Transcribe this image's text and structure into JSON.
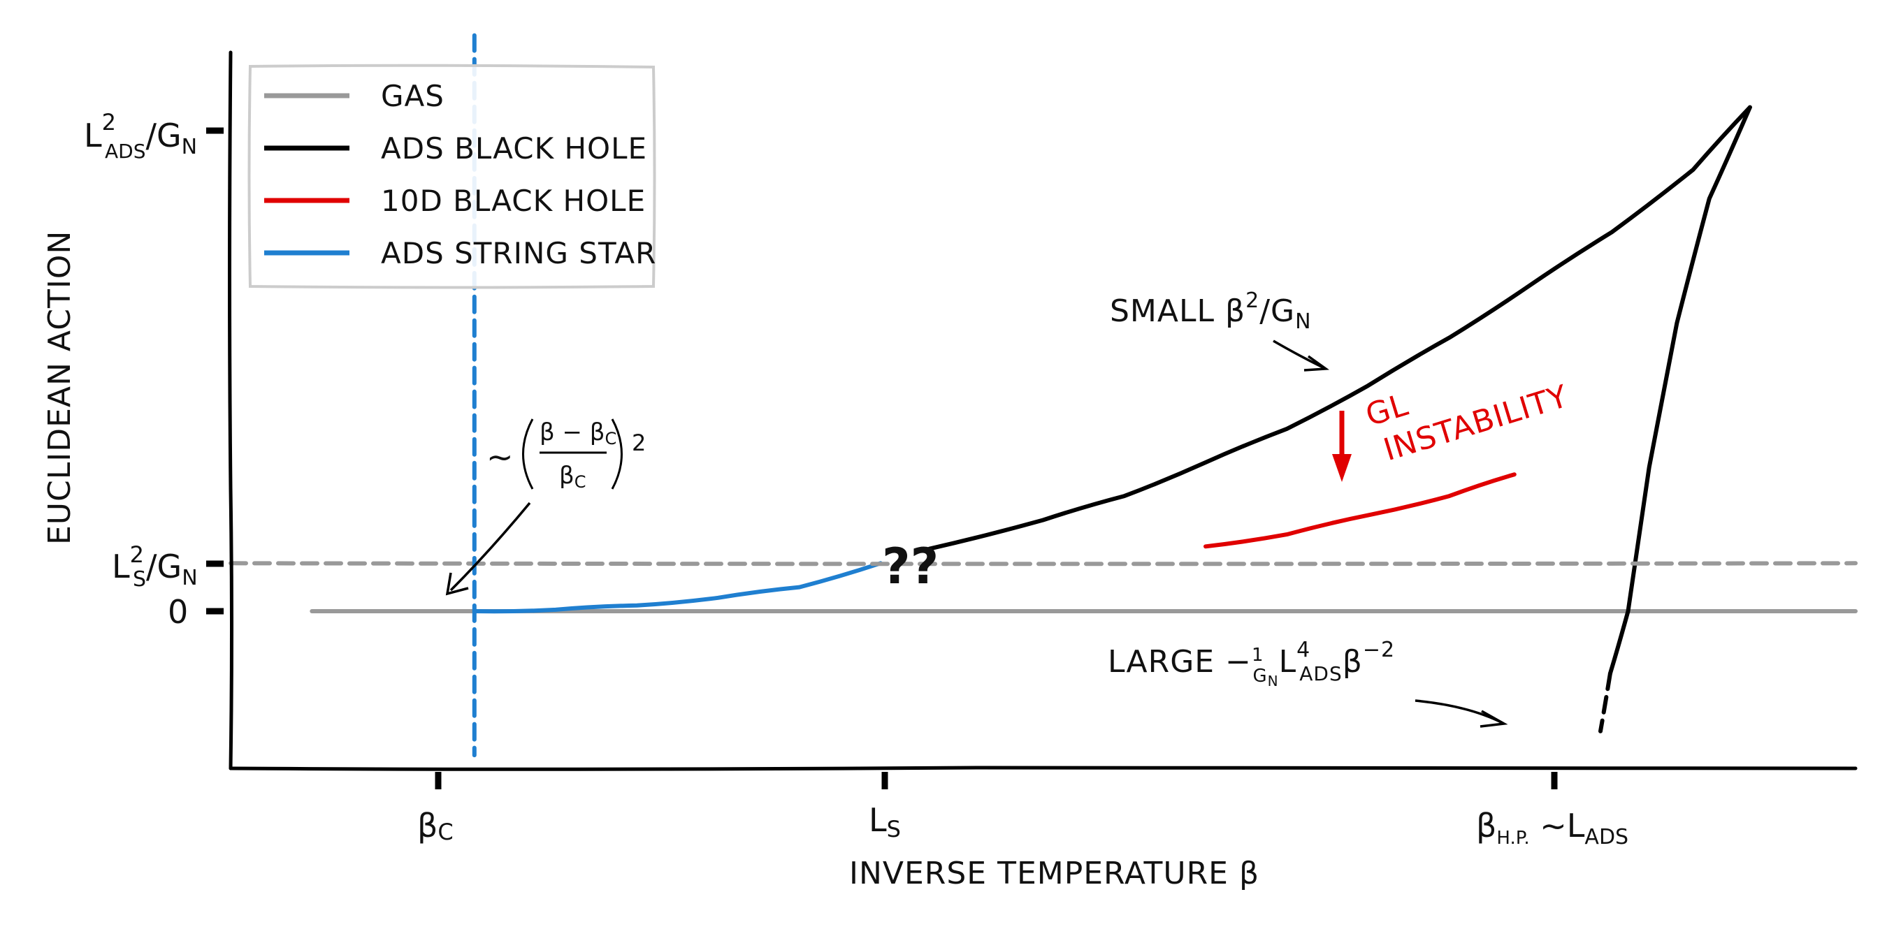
{
  "chart_data": {
    "type": "line",
    "title": "",
    "xlabel": "INVERSE TEMPERATURE β",
    "ylabel": "EUCLIDEAN ACTION",
    "xlim": [
      0,
      1
    ],
    "ylim": [
      -0.3,
      1.2
    ],
    "x_ticks": [
      {
        "value": 0.15,
        "label": "βC"
      },
      {
        "value": 0.4,
        "label": "LS"
      },
      {
        "value": 0.85,
        "label": "βH.P. ~LADS"
      }
    ],
    "y_ticks": [
      {
        "value": 0.0,
        "label": "0"
      },
      {
        "value": 0.1,
        "label": "LS²/GN"
      },
      {
        "value": 1.0,
        "label": "LADS²/GN"
      }
    ],
    "legend": {
      "placement": "top-left",
      "entries": [
        {
          "name": "GAS",
          "color": "#999999"
        },
        {
          "name": "ADS BLACK HOLE",
          "color": "#000000"
        },
        {
          "name": "10D BLACK HOLE",
          "color": "#e00000"
        },
        {
          "name": "ADS STRING STAR",
          "color": "#1f7fd0"
        }
      ]
    },
    "series": [
      {
        "name": "GAS",
        "color": "#999999",
        "style": "solid",
        "points": [
          [
            0.05,
            0.0
          ],
          [
            1.0,
            0.0
          ]
        ]
      },
      {
        "name": "ADS BLACK HOLE",
        "color": "#000000",
        "style": "solid",
        "points": [
          [
            0.43,
            0.13
          ],
          [
            0.5,
            0.19
          ],
          [
            0.55,
            0.24
          ],
          [
            0.6,
            0.31
          ],
          [
            0.65,
            0.38
          ],
          [
            0.7,
            0.47
          ],
          [
            0.75,
            0.57
          ],
          [
            0.8,
            0.68
          ],
          [
            0.85,
            0.79
          ],
          [
            0.9,
            0.92
          ],
          [
            0.935,
            1.05
          ]
        ]
      },
      {
        "name": "ADS BLACK HOLE",
        "color": "#000000",
        "style": "solid",
        "points": [
          [
            0.935,
            1.05
          ],
          [
            0.91,
            0.86
          ],
          [
            0.89,
            0.6
          ],
          [
            0.873,
            0.3
          ],
          [
            0.86,
            0.0
          ],
          [
            0.849,
            -0.13
          ]
        ]
      },
      {
        "name": "ADS BLACK HOLE",
        "color": "#000000",
        "style": "dashed",
        "points": [
          [
            0.849,
            -0.13
          ],
          [
            0.843,
            -0.25
          ]
        ]
      },
      {
        "name": "10D BLACK HOLE",
        "color": "#e00000",
        "style": "solid",
        "points": [
          [
            0.6,
            0.135
          ],
          [
            0.65,
            0.16
          ],
          [
            0.7,
            0.2
          ],
          [
            0.75,
            0.24
          ],
          [
            0.79,
            0.285
          ]
        ]
      },
      {
        "name": "ADS STRING STAR",
        "color": "#1f7fd0",
        "style": "solid",
        "points": [
          [
            0.15,
            0.0
          ],
          [
            0.2,
            0.003
          ],
          [
            0.25,
            0.012
          ],
          [
            0.3,
            0.028
          ],
          [
            0.35,
            0.05
          ],
          [
            0.4,
            0.1
          ]
        ]
      },
      {
        "name": "",
        "color": "#999999",
        "style": "dashed",
        "points": [
          [
            0.0,
            0.1
          ],
          [
            1.0,
            0.1
          ]
        ]
      },
      {
        "name": "",
        "color": "#1f7fd0",
        "style": "dashed",
        "points": [
          [
            0.15,
            1.2
          ],
          [
            0.15,
            -0.3
          ]
        ]
      }
    ],
    "annotations": [
      {
        "id": "qq",
        "text": "??",
        "x": 0.414,
        "y": 0.095
      },
      {
        "id": "small",
        "text": "SMALL β²/GN",
        "x": 0.55,
        "y": 0.62,
        "arrow_to": [
          0.61,
          0.5
        ]
      },
      {
        "id": "gl",
        "text": "GL INSTABILITY",
        "x": 0.73,
        "y": 0.42,
        "color": "#e00000"
      },
      {
        "id": "large",
        "text": "LARGE −(1/GN) L⁴ADS β⁻²",
        "x": 0.55,
        "y": -0.1,
        "arrow_to": [
          0.835,
          -0.235
        ]
      },
      {
        "id": "approx",
        "text": "~((β−βC)/βC)²",
        "x": 0.2,
        "y": 0.33,
        "arrow_to": [
          0.155,
          0.04
        ]
      }
    ]
  }
}
